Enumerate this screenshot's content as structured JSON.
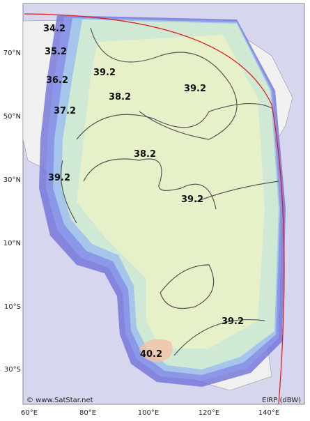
{
  "map": {
    "lat_labels": [
      "70°N",
      "50°N",
      "30°N",
      "10°N",
      "10°S",
      "30°S"
    ],
    "lon_labels": [
      "60°E",
      "80°E",
      "100°E",
      "120°E",
      "140°E"
    ],
    "contours": [
      34.2,
      35.2,
      36.2,
      37.2,
      39.2,
      39.2,
      38.2,
      39.2,
      38.2,
      39.2,
      39.2,
      40.2
    ],
    "copyright": "© www.SatStar.net",
    "legend": "EIRP (dBW)"
  }
}
